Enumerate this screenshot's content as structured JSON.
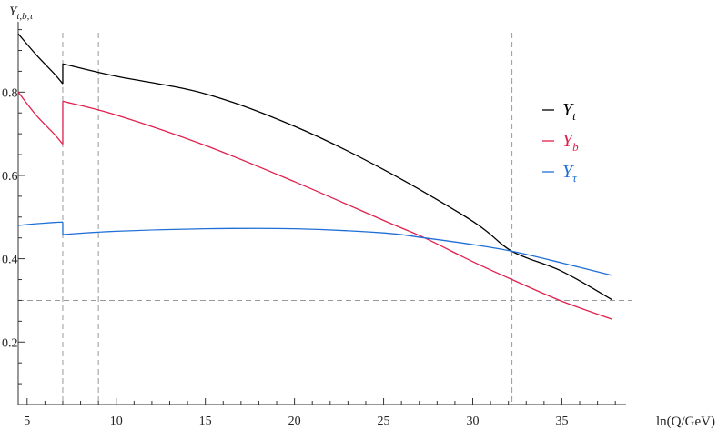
{
  "chart_data": {
    "type": "line",
    "title": "",
    "xlabel": "ln(Q/GeV)",
    "ylabel": {
      "base": "Y",
      "sub": "t,b,τ"
    },
    "xlim": [
      4.5,
      38.5
    ],
    "ylim": [
      0.05,
      0.96
    ],
    "x_ticks_labeled": [
      5,
      10,
      15,
      20,
      25,
      30,
      35
    ],
    "x_tick_labels": [
      "5",
      "10",
      "15",
      "20",
      "25",
      "30",
      "35"
    ],
    "y_ticks_labeled": [
      0.2,
      0.4,
      0.6,
      0.8
    ],
    "y_tick_labels": [
      "0.2",
      "0.4",
      "0.6",
      "0.8"
    ],
    "grid": false,
    "reference_lines": {
      "vertical": [
        7.0,
        9.0,
        32.2
      ],
      "horizontal": [
        0.3
      ]
    },
    "legend_placement": "right",
    "series": [
      {
        "name": "Y_t",
        "legend_base": "Y",
        "legend_sub": "t",
        "color": "#000000",
        "segments": [
          {
            "x": [
              4.5,
              5.5,
              6.5,
              7.0
            ],
            "y": [
              0.94,
              0.89,
              0.845,
              0.82
            ]
          },
          {
            "x": [
              7.0,
              10,
              15,
              20,
              25,
              30,
              32.2,
              35,
              37.8
            ],
            "y": [
              0.868,
              0.838,
              0.796,
              0.718,
              0.614,
              0.49,
              0.418,
              0.37,
              0.302
            ]
          }
        ]
      },
      {
        "name": "Y_b",
        "legend_base": "Y",
        "legend_sub": "b",
        "color": "#e0204c",
        "segments": [
          {
            "x": [
              4.5,
              5.5,
              6.5,
              7.0
            ],
            "y": [
              0.8,
              0.745,
              0.7,
              0.675
            ]
          },
          {
            "x": [
              7.0,
              10,
              15,
              20,
              25,
              27.3,
              30,
              32.2,
              35,
              37.8
            ],
            "y": [
              0.778,
              0.745,
              0.672,
              0.585,
              0.492,
              0.45,
              0.393,
              0.35,
              0.298,
              0.255
            ]
          }
        ]
      },
      {
        "name": "Y_τ",
        "legend_base": "Y",
        "legend_sub": "τ",
        "color": "#1f6fd6",
        "segments": [
          {
            "x": [
              4.5,
              5.5,
              6.5,
              7.0
            ],
            "y": [
              0.48,
              0.484,
              0.487,
              0.488
            ]
          },
          {
            "x": [
              7.0,
              10,
              15,
              20,
              25,
              27.3,
              30,
              32.2,
              35,
              37.8
            ],
            "y": [
              0.458,
              0.466,
              0.472,
              0.472,
              0.462,
              0.45,
              0.434,
              0.418,
              0.39,
              0.36
            ]
          }
        ]
      }
    ]
  }
}
